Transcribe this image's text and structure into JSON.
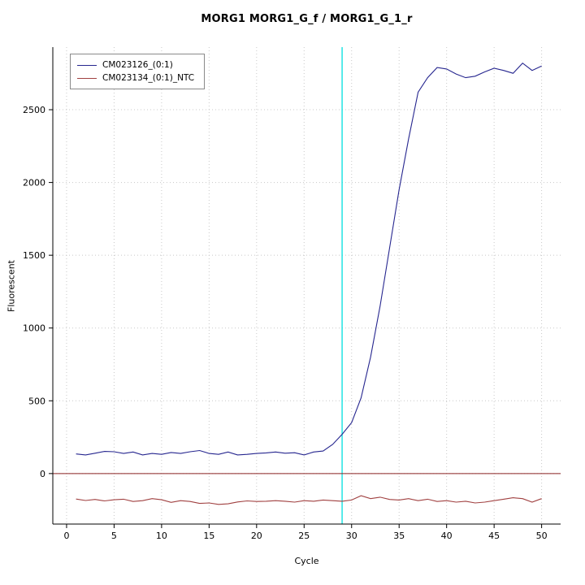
{
  "chart_data": {
    "type": "line",
    "title": "MORG1  MORG1_G_f / MORG1_G_1_r",
    "xlabel": "Cycle",
    "ylabel": "Fluorescent",
    "grid": true,
    "legend_position": "top-left",
    "xlim": [
      -1.45,
      52.0
    ],
    "ylim": [
      -347,
      2930
    ],
    "x_ticks": [
      0,
      5,
      10,
      15,
      20,
      25,
      30,
      35,
      40,
      45,
      50
    ],
    "y_ticks": [
      0,
      500,
      1000,
      1500,
      2000,
      2500
    ],
    "x": [
      1,
      2,
      3,
      4,
      5,
      6,
      7,
      8,
      9,
      10,
      11,
      12,
      13,
      14,
      15,
      16,
      17,
      18,
      19,
      20,
      21,
      22,
      23,
      24,
      25,
      26,
      27,
      28,
      29,
      30,
      31,
      32,
      33,
      34,
      35,
      36,
      37,
      38,
      39,
      40,
      41,
      42,
      43,
      44,
      45,
      46,
      47,
      48,
      49,
      50
    ],
    "series": [
      {
        "name": "CM023126_(0:1)",
        "color": "#26268F",
        "values": [
          135,
          128,
          140,
          152,
          150,
          138,
          148,
          128,
          138,
          132,
          145,
          138,
          150,
          158,
          138,
          132,
          148,
          128,
          132,
          138,
          142,
          148,
          140,
          143,
          128,
          148,
          155,
          200,
          270,
          350,
          520,
          800,
          1150,
          1550,
          1950,
          2300,
          2620,
          2720,
          2790,
          2780,
          2745,
          2720,
          2730,
          2760,
          2785,
          2770,
          2750,
          2820,
          2770,
          2800
        ]
      },
      {
        "name": "CM023134_(0:1)_NTC",
        "color": "#A04040",
        "values": [
          -175,
          -185,
          -178,
          -188,
          -180,
          -176,
          -192,
          -186,
          -172,
          -180,
          -198,
          -186,
          -192,
          -205,
          -202,
          -212,
          -208,
          -195,
          -188,
          -192,
          -190,
          -186,
          -190,
          -196,
          -186,
          -190,
          -182,
          -186,
          -190,
          -182,
          -152,
          -172,
          -162,
          -178,
          -182,
          -172,
          -186,
          -176,
          -192,
          -186,
          -196,
          -190,
          -202,
          -196,
          -186,
          -176,
          -166,
          -172,
          -196,
          -172
        ]
      }
    ],
    "threshold_line": {
      "y": 0,
      "color": "#8B2323"
    },
    "vline": {
      "x": 29,
      "color": "#00E0E0"
    },
    "colors": {
      "grid": "#c8c8c8",
      "axis": "#000000",
      "background": "#ffffff"
    }
  }
}
